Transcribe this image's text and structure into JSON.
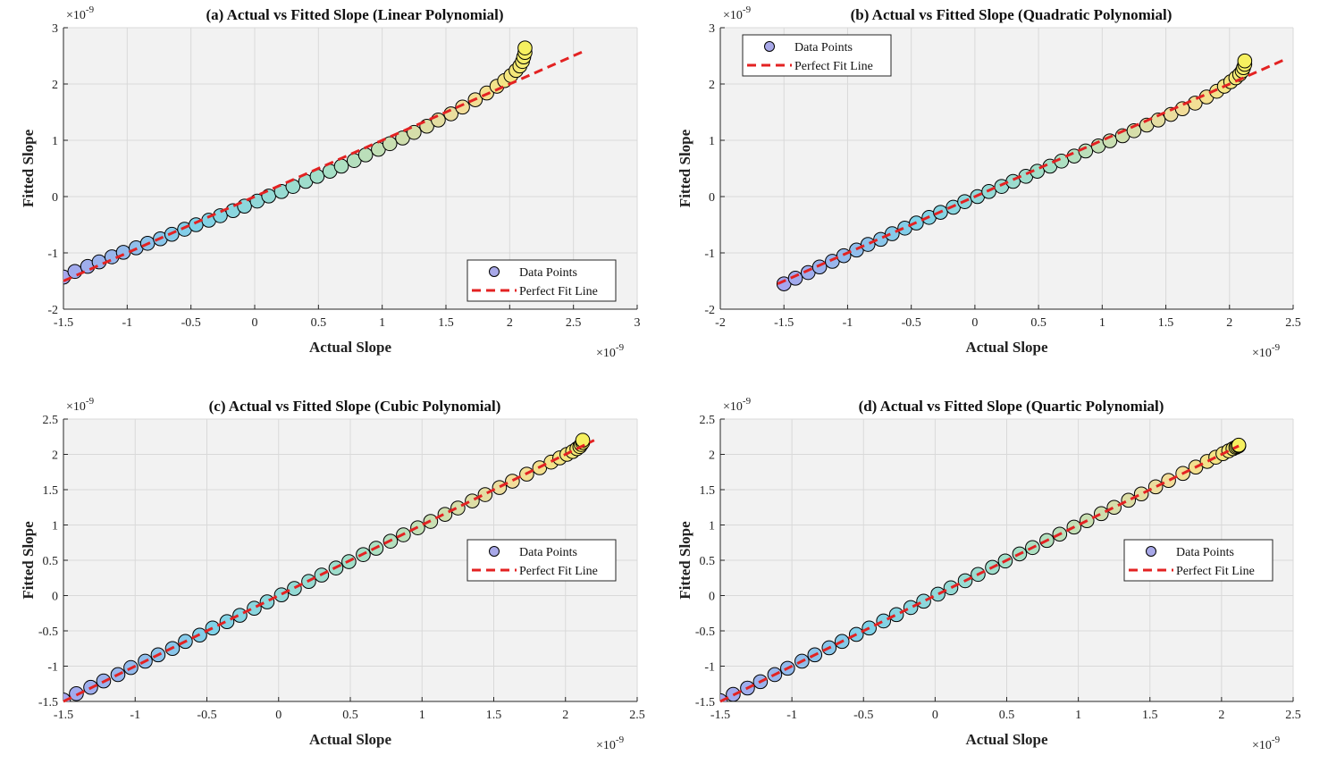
{
  "figure": {
    "width": 1486,
    "height": 855,
    "colors": {
      "plot_bg": "#f2f2f2",
      "grid": "#d9d9d9",
      "axis": "#262626",
      "fit_line": "#e32222",
      "marker_edge": "#000000",
      "colormap": [
        "#a6a6ee",
        "#7fd2e8",
        "#a6e0c6",
        "#f2dd9a",
        "#f6f060"
      ]
    }
  },
  "chart_data": [
    {
      "type": "scatter",
      "title": "(a) Actual vs Fitted Slope (Linear Polynomial)",
      "xlabel": "Actual Slope",
      "ylabel": "Fitted Slope",
      "x_exponent": "10^-9",
      "y_exponent": "10^-9",
      "xlim": [
        -1.5,
        3
      ],
      "ylim": [
        -2,
        3
      ],
      "xticks": [
        "-1.5",
        "-1",
        "-0.5",
        "0",
        "0.5",
        "1",
        "1.5",
        "2",
        "2.5",
        "3"
      ],
      "yticks": [
        "-2",
        "-1",
        "0",
        "1",
        "2",
        "3"
      ],
      "grid": true,
      "legend_position": "bottom-right",
      "legend": [
        "Data Points",
        "Perfect Fit Line"
      ],
      "fit_line": {
        "x": [
          -1.5,
          2.6
        ],
        "y": [
          -1.5,
          2.6
        ]
      },
      "series": [
        {
          "name": "Data Points",
          "x": [
            -1.5,
            -1.41,
            -1.31,
            -1.22,
            -1.12,
            -1.03,
            -0.93,
            -0.84,
            -0.74,
            -0.65,
            -0.55,
            -0.46,
            -0.36,
            -0.27,
            -0.17,
            -0.08,
            0.02,
            0.11,
            0.21,
            0.3,
            0.4,
            0.49,
            0.59,
            0.68,
            0.78,
            0.87,
            0.97,
            1.06,
            1.16,
            1.25,
            1.35,
            1.44,
            1.54,
            1.63,
            1.73,
            1.82,
            1.9,
            1.96,
            2.01,
            2.05,
            2.08,
            2.1,
            2.11,
            2.12,
            2.12
          ],
          "y": [
            -1.43,
            -1.33,
            -1.24,
            -1.16,
            -1.07,
            -0.99,
            -0.91,
            -0.83,
            -0.75,
            -0.67,
            -0.58,
            -0.5,
            -0.42,
            -0.34,
            -0.25,
            -0.17,
            -0.08,
            0.01,
            0.09,
            0.18,
            0.27,
            0.36,
            0.45,
            0.54,
            0.64,
            0.74,
            0.84,
            0.94,
            1.04,
            1.14,
            1.25,
            1.36,
            1.47,
            1.59,
            1.72,
            1.84,
            1.96,
            2.06,
            2.15,
            2.24,
            2.32,
            2.4,
            2.48,
            2.56,
            2.64
          ]
        }
      ]
    },
    {
      "type": "scatter",
      "title": "(b) Actual vs Fitted Slope (Quadratic Polynomial)",
      "xlabel": "Actual Slope",
      "ylabel": "Fitted Slope",
      "x_exponent": "10^-9",
      "y_exponent": "10^-9",
      "xlim": [
        -2,
        2.5
      ],
      "ylim": [
        -2,
        3
      ],
      "xticks": [
        "-2",
        "-1.5",
        "-1",
        "-0.5",
        "0",
        "0.5",
        "1",
        "1.5",
        "2",
        "2.5"
      ],
      "yticks": [
        "-2",
        "-1",
        "0",
        "1",
        "2",
        "3"
      ],
      "grid": true,
      "legend_position": "top-left",
      "legend": [
        "Data Points",
        "Perfect Fit Line"
      ],
      "fit_line": {
        "x": [
          -1.55,
          2.45
        ],
        "y": [
          -1.55,
          2.45
        ]
      },
      "series": [
        {
          "name": "Data Points",
          "x": [
            -1.5,
            -1.41,
            -1.31,
            -1.22,
            -1.12,
            -1.03,
            -0.93,
            -0.84,
            -0.74,
            -0.65,
            -0.55,
            -0.46,
            -0.36,
            -0.27,
            -0.17,
            -0.08,
            0.02,
            0.11,
            0.21,
            0.3,
            0.4,
            0.49,
            0.59,
            0.68,
            0.78,
            0.87,
            0.97,
            1.06,
            1.16,
            1.25,
            1.35,
            1.44,
            1.54,
            1.63,
            1.73,
            1.82,
            1.9,
            1.96,
            2.01,
            2.05,
            2.08,
            2.1,
            2.11,
            2.12,
            2.12
          ],
          "y": [
            -1.55,
            -1.45,
            -1.35,
            -1.25,
            -1.15,
            -1.05,
            -0.95,
            -0.85,
            -0.76,
            -0.66,
            -0.56,
            -0.47,
            -0.37,
            -0.28,
            -0.19,
            -0.09,
            0.0,
            0.09,
            0.18,
            0.27,
            0.36,
            0.45,
            0.54,
            0.63,
            0.72,
            0.81,
            0.9,
            0.99,
            1.08,
            1.17,
            1.27,
            1.36,
            1.46,
            1.56,
            1.66,
            1.77,
            1.87,
            1.96,
            2.04,
            2.11,
            2.17,
            2.23,
            2.29,
            2.35,
            2.41
          ]
        }
      ]
    },
    {
      "type": "scatter",
      "title": "(c) Actual vs Fitted Slope (Cubic Polynomial)",
      "xlabel": "Actual Slope",
      "ylabel": "Fitted Slope",
      "x_exponent": "10^-9",
      "y_exponent": "10^-9",
      "xlim": [
        -1.5,
        2.5
      ],
      "ylim": [
        -1.5,
        2.5
      ],
      "xticks": [
        "-1.5",
        "-1",
        "-0.5",
        "0",
        "0.5",
        "1",
        "1.5",
        "2",
        "2.5"
      ],
      "yticks": [
        "-1.5",
        "-1",
        "-0.5",
        "0",
        "0.5",
        "1",
        "1.5",
        "2",
        "2.5"
      ],
      "grid": true,
      "legend_position": "middle-right",
      "legend": [
        "Data Points",
        "Perfect Fit Line"
      ],
      "fit_line": {
        "x": [
          -1.5,
          2.2
        ],
        "y": [
          -1.5,
          2.2
        ]
      },
      "series": [
        {
          "name": "Data Points",
          "x": [
            -1.5,
            -1.41,
            -1.31,
            -1.22,
            -1.12,
            -1.03,
            -0.93,
            -0.84,
            -0.74,
            -0.65,
            -0.55,
            -0.46,
            -0.36,
            -0.27,
            -0.17,
            -0.08,
            0.02,
            0.11,
            0.21,
            0.3,
            0.4,
            0.49,
            0.59,
            0.68,
            0.78,
            0.87,
            0.97,
            1.06,
            1.16,
            1.25,
            1.35,
            1.44,
            1.54,
            1.63,
            1.73,
            1.82,
            1.9,
            1.96,
            2.01,
            2.05,
            2.08,
            2.1,
            2.11,
            2.12,
            2.12
          ],
          "y": [
            -1.48,
            -1.39,
            -1.3,
            -1.21,
            -1.12,
            -1.02,
            -0.93,
            -0.84,
            -0.75,
            -0.65,
            -0.56,
            -0.46,
            -0.37,
            -0.28,
            -0.18,
            -0.09,
            0.01,
            0.1,
            0.2,
            0.29,
            0.39,
            0.48,
            0.58,
            0.67,
            0.77,
            0.86,
            0.96,
            1.05,
            1.15,
            1.24,
            1.34,
            1.43,
            1.53,
            1.62,
            1.72,
            1.81,
            1.89,
            1.95,
            2.0,
            2.04,
            2.08,
            2.11,
            2.14,
            2.17,
            2.2
          ]
        }
      ]
    },
    {
      "type": "scatter",
      "title": "(d) Actual vs Fitted Slope (Quartic Polynomial)",
      "xlabel": "Actual Slope",
      "ylabel": "Fitted Slope",
      "x_exponent": "10^-9",
      "y_exponent": "10^-9",
      "xlim": [
        -1.5,
        2.5
      ],
      "ylim": [
        -1.5,
        2.5
      ],
      "xticks": [
        "-1.5",
        "-1",
        "-0.5",
        "0",
        "0.5",
        "1",
        "1.5",
        "2",
        "2.5"
      ],
      "yticks": [
        "-1.5",
        "-1",
        "-0.5",
        "0",
        "0.5",
        "1",
        "1.5",
        "2",
        "2.5"
      ],
      "grid": true,
      "legend_position": "middle-right",
      "legend": [
        "Data Points",
        "Perfect Fit Line"
      ],
      "fit_line": {
        "x": [
          -1.5,
          2.12
        ],
        "y": [
          -1.5,
          2.12
        ]
      },
      "series": [
        {
          "name": "Data Points",
          "x": [
            -1.5,
            -1.41,
            -1.31,
            -1.22,
            -1.12,
            -1.03,
            -0.93,
            -0.84,
            -0.74,
            -0.65,
            -0.55,
            -0.46,
            -0.36,
            -0.27,
            -0.17,
            -0.08,
            0.02,
            0.11,
            0.21,
            0.3,
            0.4,
            0.49,
            0.59,
            0.68,
            0.78,
            0.87,
            0.97,
            1.06,
            1.16,
            1.25,
            1.35,
            1.44,
            1.54,
            1.63,
            1.73,
            1.82,
            1.9,
            1.96,
            2.01,
            2.05,
            2.08,
            2.1,
            2.11,
            2.12,
            2.12
          ],
          "y": [
            -1.49,
            -1.4,
            -1.31,
            -1.22,
            -1.12,
            -1.03,
            -0.93,
            -0.84,
            -0.74,
            -0.65,
            -0.55,
            -0.46,
            -0.36,
            -0.27,
            -0.17,
            -0.08,
            0.02,
            0.11,
            0.21,
            0.3,
            0.4,
            0.49,
            0.59,
            0.68,
            0.78,
            0.87,
            0.97,
            1.06,
            1.16,
            1.25,
            1.35,
            1.44,
            1.54,
            1.63,
            1.73,
            1.82,
            1.9,
            1.96,
            2.01,
            2.05,
            2.08,
            2.1,
            2.11,
            2.12,
            2.13
          ]
        }
      ]
    }
  ]
}
